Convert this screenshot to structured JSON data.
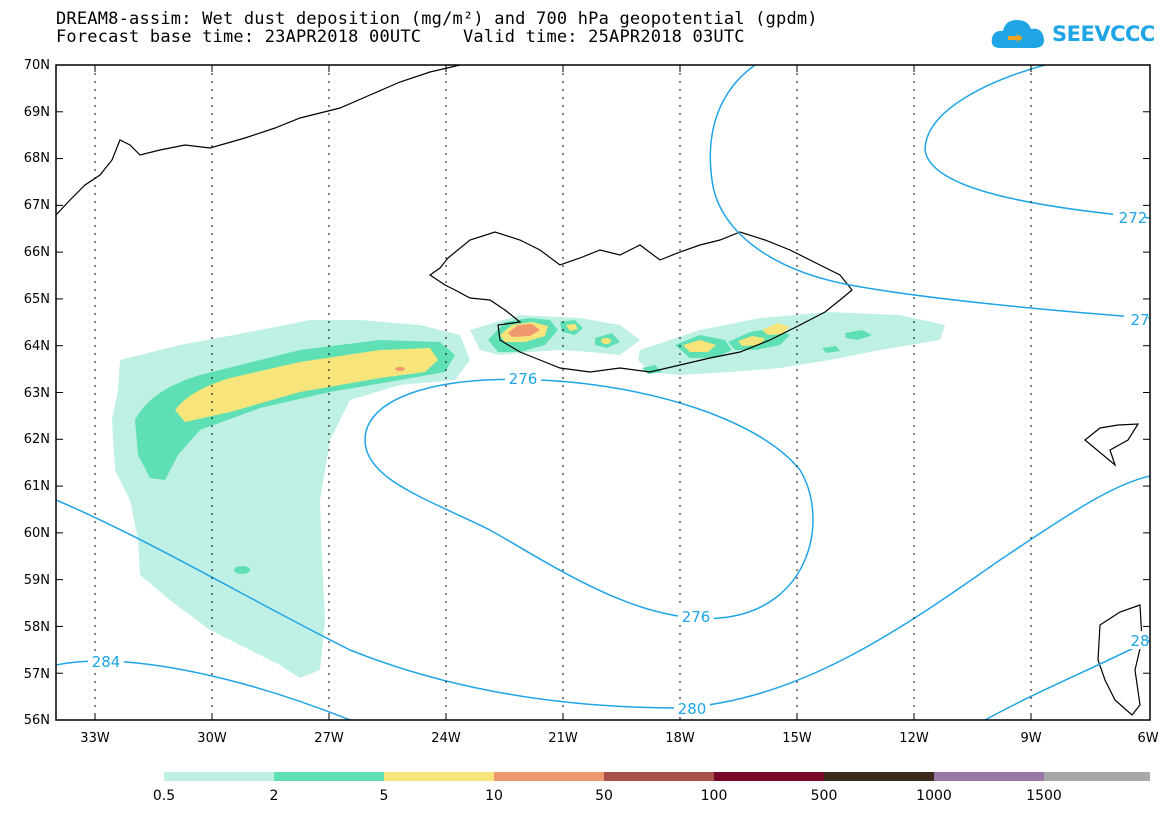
{
  "header": {
    "title_line1": "DREAM8-assim: Wet dust deposition (mg/m²) and 700 hPa geopotential (gpdm)",
    "title_line2": "Forecast base time: 23APR2018 00UTC    Valid time: 25APR2018 03UTC"
  },
  "logo": {
    "text": "SEEVCCC",
    "icon": "cloud-icon",
    "color": "#1fa5e6"
  },
  "map": {
    "lat_labels": [
      "70N",
      "69N",
      "68N",
      "67N",
      "66N",
      "65N",
      "64N",
      "63N",
      "62N",
      "61N",
      "60N",
      "59N",
      "58N",
      "57N",
      "56N"
    ],
    "lon_labels": [
      "33W",
      "30W",
      "27W",
      "24W",
      "21W",
      "18W",
      "15W",
      "12W",
      "9W",
      "6W"
    ],
    "contour_labels": [
      "272",
      "27",
      "276",
      "276",
      "280",
      "284",
      "28"
    ],
    "contour_color": "#1fa5e6"
  },
  "colorbar": {
    "colors": [
      "#bff0e6",
      "#5ee0b4",
      "#f7e57c",
      "#ef9870",
      "#a8504a",
      "#7a0a2a",
      "#3c2a1e",
      "#9a78a6",
      "#a8a8a8"
    ],
    "labels": [
      "0.5",
      "2",
      "5",
      "10",
      "50",
      "100",
      "500",
      "1000",
      "1500"
    ]
  }
}
